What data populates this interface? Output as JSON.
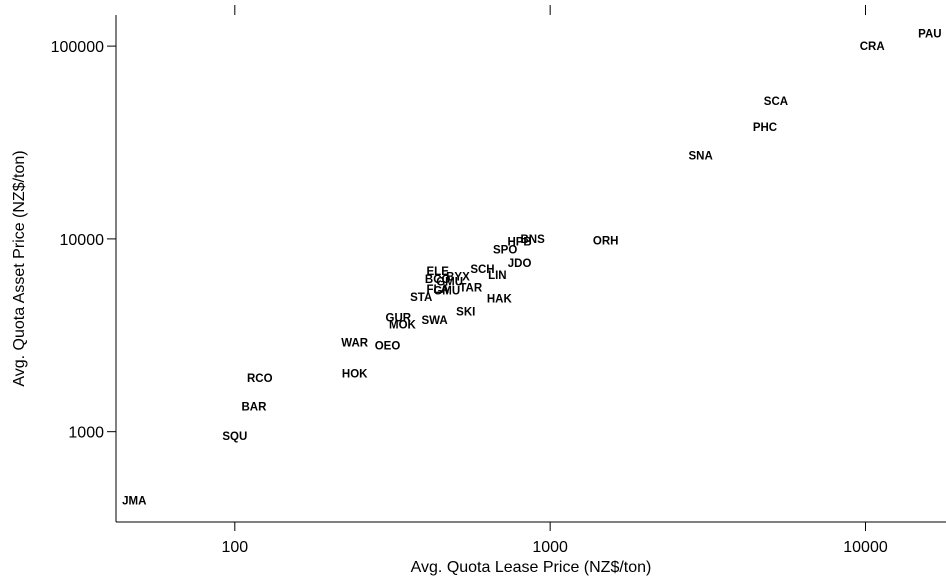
{
  "chart_data": {
    "type": "scatter",
    "title": "",
    "xlabel": "Avg. Quota Lease Price (NZ$/ton)",
    "ylabel": "Avg. Quota Asset Price (NZ$/ton)",
    "x_scale": "log",
    "y_scale": "log",
    "xlim": [
      42,
      18000
    ],
    "ylim": [
      340,
      145000
    ],
    "x_ticks": [
      100,
      1000,
      10000
    ],
    "x_tick_labels": [
      "100",
      "1000",
      "10000"
    ],
    "y_ticks": [
      1000,
      10000,
      100000
    ],
    "y_tick_labels": [
      "1000",
      "10000",
      "100000"
    ],
    "grid": false,
    "legend": "none",
    "points": [
      {
        "label": "PAU",
        "x": 16000,
        "y": 116000
      },
      {
        "label": "CRA",
        "x": 10500,
        "y": 100000
      },
      {
        "label": "SCA",
        "x": 5200,
        "y": 52000
      },
      {
        "label": "PHC",
        "x": 4800,
        "y": 38000
      },
      {
        "label": "SNA",
        "x": 3000,
        "y": 27000
      },
      {
        "label": "ORH",
        "x": 1500,
        "y": 9800
      },
      {
        "label": "BNS",
        "x": 880,
        "y": 10000
      },
      {
        "label": "HPB",
        "x": 800,
        "y": 9700
      },
      {
        "label": "SPO",
        "x": 720,
        "y": 8800
      },
      {
        "label": "JDO",
        "x": 800,
        "y": 7500
      },
      {
        "label": "SCH",
        "x": 610,
        "y": 7000
      },
      {
        "label": "LIN",
        "x": 680,
        "y": 6500
      },
      {
        "label": "ELE",
        "x": 440,
        "y": 6800
      },
      {
        "label": "BYX",
        "x": 510,
        "y": 6400
      },
      {
        "label": "BCO",
        "x": 440,
        "y": 6200
      },
      {
        "label": "GMU",
        "x": 480,
        "y": 6000
      },
      {
        "label": "TAR",
        "x": 560,
        "y": 5600
      },
      {
        "label": "FLA",
        "x": 440,
        "y": 5500
      },
      {
        "label": "GMU",
        "x": 470,
        "y": 5400
      },
      {
        "label": "STA",
        "x": 390,
        "y": 5000
      },
      {
        "label": "HAK",
        "x": 690,
        "y": 4900
      },
      {
        "label": "SKI",
        "x": 540,
        "y": 4200
      },
      {
        "label": "GUR",
        "x": 330,
        "y": 3900
      },
      {
        "label": "SWA",
        "x": 430,
        "y": 3800
      },
      {
        "label": "MOK",
        "x": 340,
        "y": 3600
      },
      {
        "label": "WAR",
        "x": 240,
        "y": 2900
      },
      {
        "label": "OEO",
        "x": 305,
        "y": 2800
      },
      {
        "label": "HOK",
        "x": 240,
        "y": 2000
      },
      {
        "label": "RCO",
        "x": 120,
        "y": 1900
      },
      {
        "label": "BAR",
        "x": 115,
        "y": 1350
      },
      {
        "label": "SQU",
        "x": 100,
        "y": 950
      },
      {
        "label": "JMA",
        "x": 48,
        "y": 440
      }
    ]
  }
}
